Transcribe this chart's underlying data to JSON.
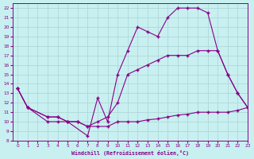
{
  "xlabel": "Windchill (Refroidissement éolien,°C)",
  "xlim": [
    -0.5,
    23
  ],
  "ylim": [
    8,
    22.5
  ],
  "xticks": [
    0,
    1,
    2,
    3,
    4,
    5,
    6,
    7,
    8,
    9,
    10,
    11,
    12,
    13,
    14,
    15,
    16,
    17,
    18,
    19,
    20,
    21,
    22,
    23
  ],
  "yticks": [
    8,
    9,
    10,
    11,
    12,
    13,
    14,
    15,
    16,
    17,
    18,
    19,
    20,
    21,
    22
  ],
  "bg_color": "#c8f0f0",
  "line_color": "#880088",
  "grid_color": "#aadddd",
  "line1_x": [
    0,
    1,
    3,
    4,
    5,
    7,
    8,
    9,
    10,
    11,
    12,
    13,
    14,
    15,
    16,
    17,
    18,
    19,
    20,
    21,
    22,
    23
  ],
  "line1_y": [
    13.5,
    11.5,
    10.5,
    10.5,
    10.0,
    8.5,
    12.5,
    10.0,
    15.0,
    17.5,
    20.0,
    19.5,
    19.0,
    21.0,
    22.0,
    22.0,
    22.0,
    21.5,
    17.5,
    15.0,
    13.0,
    11.5
  ],
  "line2_x": [
    0,
    1,
    3,
    4,
    5,
    6,
    7,
    8,
    9,
    10,
    11,
    12,
    13,
    14,
    15,
    16,
    17,
    18,
    19,
    20,
    21,
    22,
    23
  ],
  "line2_y": [
    13.5,
    11.5,
    10.5,
    10.5,
    10.0,
    10.0,
    9.5,
    10.0,
    10.5,
    12.0,
    15.0,
    15.5,
    16.0,
    16.5,
    17.0,
    17.0,
    17.0,
    17.5,
    17.5,
    17.5,
    15.0,
    13.0,
    11.5
  ],
  "line3_x": [
    0,
    1,
    3,
    4,
    5,
    6,
    7,
    8,
    9,
    10,
    11,
    12,
    13,
    14,
    15,
    16,
    17,
    18,
    19,
    20,
    21,
    22,
    23
  ],
  "line3_y": [
    13.5,
    11.5,
    10.0,
    10.0,
    10.0,
    10.0,
    9.5,
    9.5,
    9.5,
    10.0,
    10.0,
    10.0,
    10.2,
    10.3,
    10.5,
    10.7,
    10.8,
    11.0,
    11.0,
    11.0,
    11.0,
    11.2,
    11.5
  ]
}
